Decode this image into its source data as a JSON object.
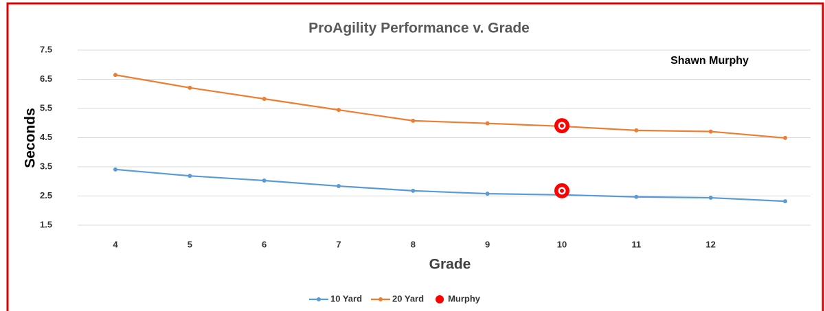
{
  "chart_data": {
    "type": "line",
    "title": "ProAgility Performance v. Grade",
    "annotation": "Shawn Murphy",
    "xlabel": "Grade",
    "ylabel": "Seconds",
    "categories": [
      4,
      5,
      6,
      7,
      8,
      9,
      10,
      11,
      12,
      null
    ],
    "series": [
      {
        "name": "10 Yard",
        "color": "#5b9bd5",
        "values": [
          3.41,
          3.19,
          3.03,
          2.84,
          2.68,
          2.58,
          2.54,
          2.47,
          2.44,
          2.32
        ]
      },
      {
        "name": "20 Yard",
        "color": "#ed7d31",
        "values": [
          6.65,
          6.21,
          5.83,
          5.45,
          5.08,
          4.99,
          4.89,
          4.75,
          4.71,
          4.49
        ]
      }
    ],
    "highlight": {
      "name": "Murphy",
      "color": "#ff0000",
      "x": [
        10,
        10
      ],
      "values": [
        4.91,
        2.68
      ]
    },
    "ylim": [
      1.5,
      7.5
    ],
    "yticks": [
      1.5,
      2.5,
      3.5,
      4.5,
      5.5,
      6.5,
      7.5
    ],
    "grid": true,
    "legend": "bottom"
  }
}
